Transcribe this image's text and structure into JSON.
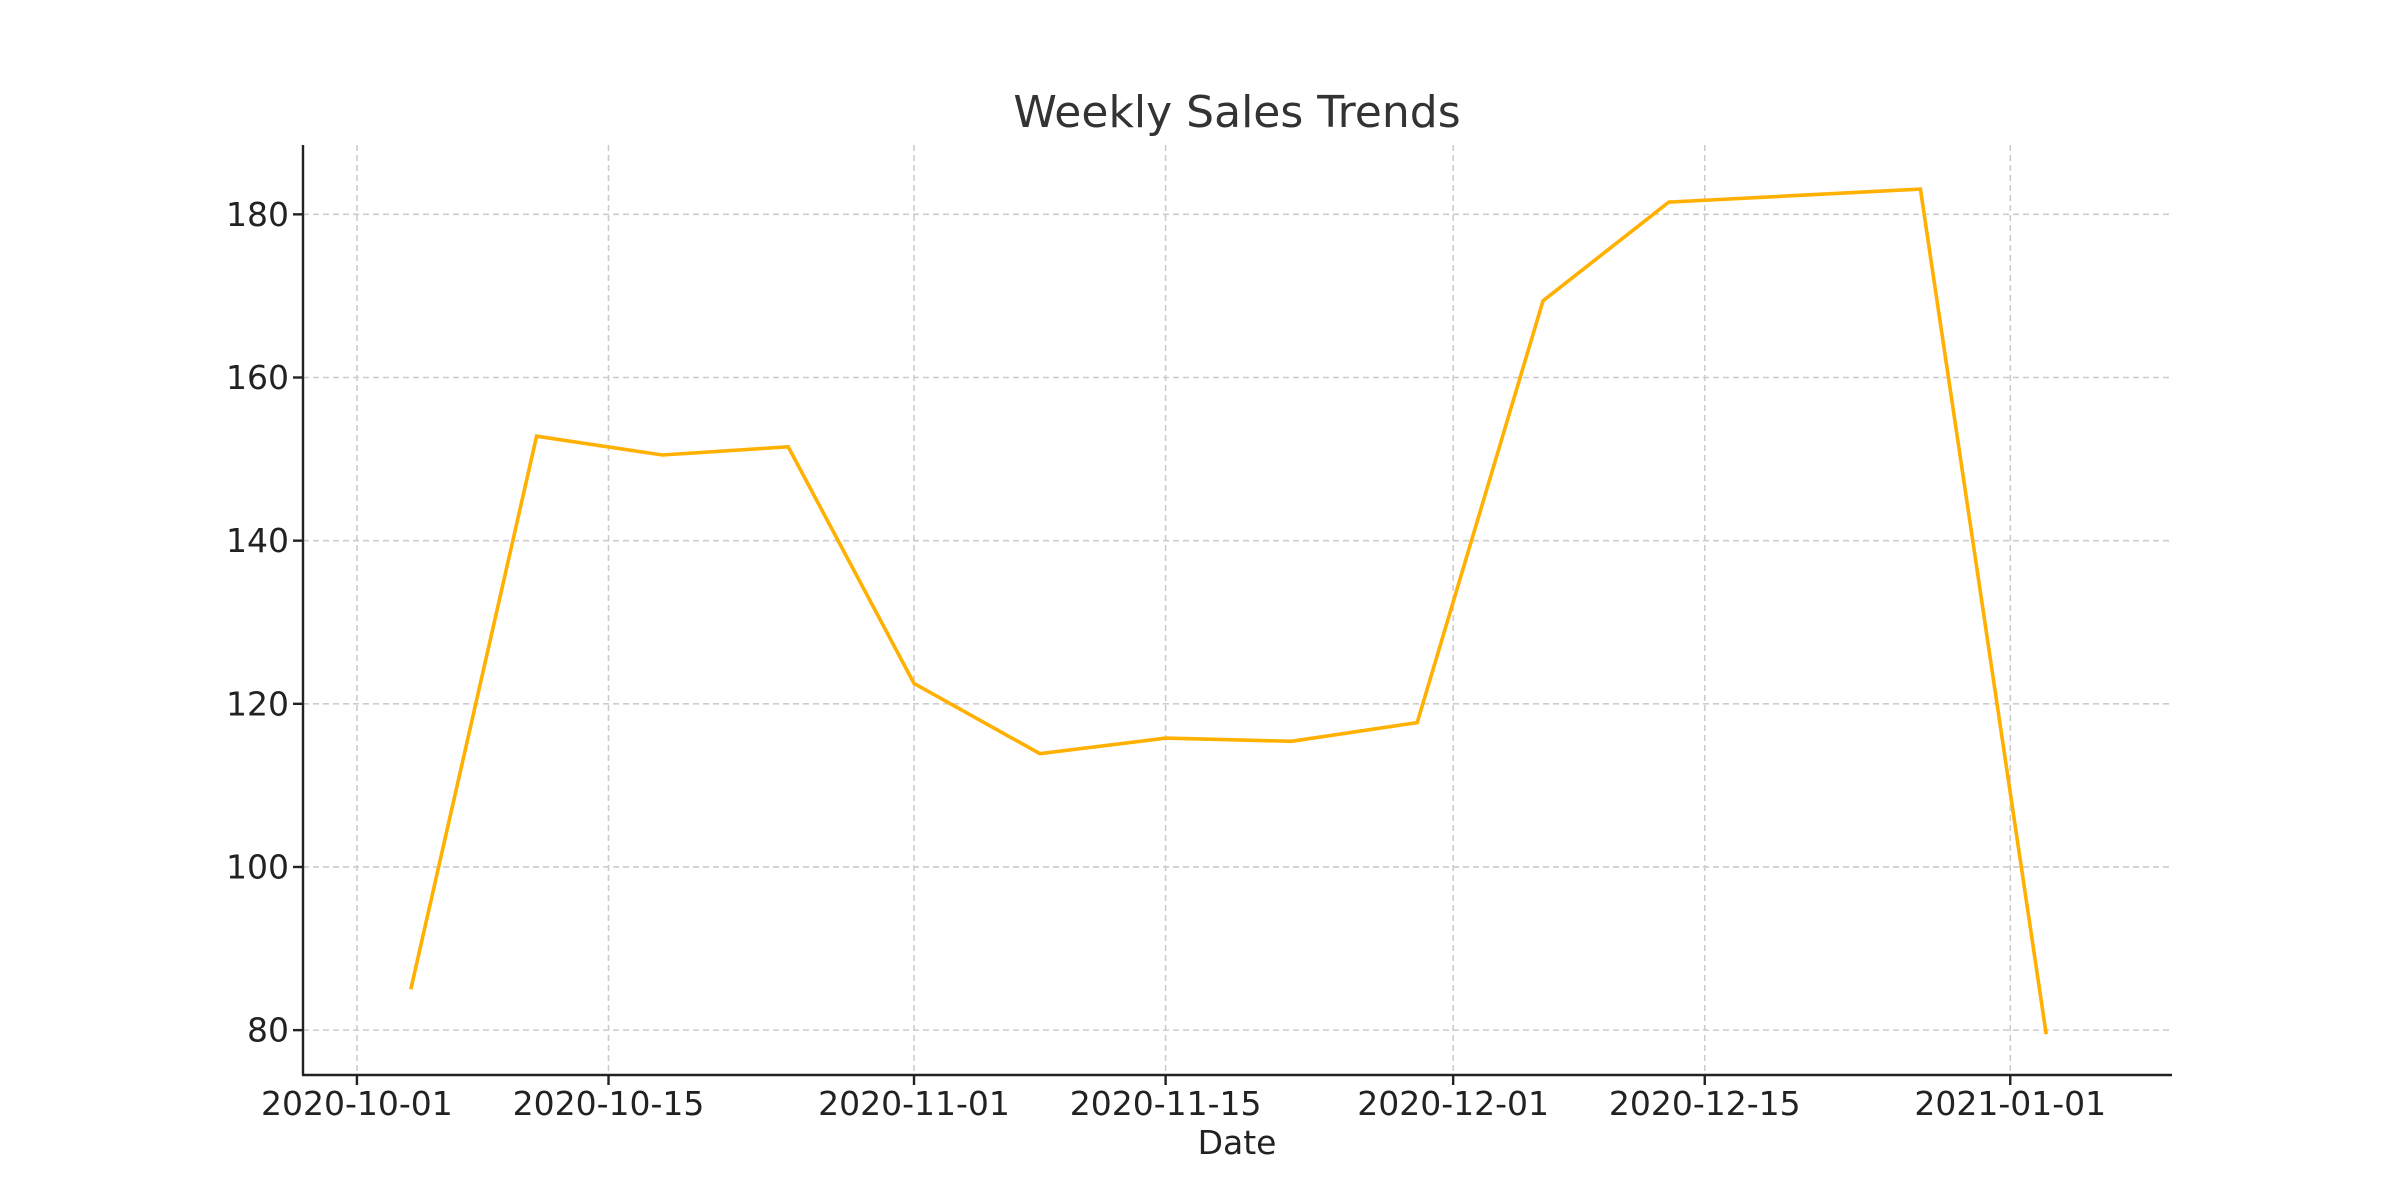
{
  "chart_data": {
    "type": "line",
    "title": "Weekly Sales Trends",
    "xlabel": "Date",
    "ylabel": "",
    "x_scale": "date",
    "xlim": [
      "2020-09-28",
      "2021-01-10"
    ],
    "ylim": [
      74.5,
      188.5
    ],
    "x_ticks": [
      "2020-10-01",
      "2020-10-15",
      "2020-11-01",
      "2020-11-15",
      "2020-12-01",
      "2020-12-15",
      "2021-01-01"
    ],
    "y_ticks": [
      80,
      100,
      120,
      140,
      160,
      180
    ],
    "grid": true,
    "legend": false,
    "series": [
      {
        "color": "#FFB000",
        "x": [
          "2020-10-04",
          "2020-10-11",
          "2020-10-18",
          "2020-10-25",
          "2020-11-01",
          "2020-11-08",
          "2020-11-15",
          "2020-11-22",
          "2020-11-29",
          "2020-12-06",
          "2020-12-13",
          "2020-12-20",
          "2020-12-27",
          "2021-01-03"
        ],
        "values": [
          85.0,
          152.8,
          150.5,
          151.5,
          122.5,
          113.9,
          115.8,
          115.4,
          117.7,
          169.4,
          181.5,
          182.3,
          183.1,
          79.5
        ]
      }
    ]
  }
}
